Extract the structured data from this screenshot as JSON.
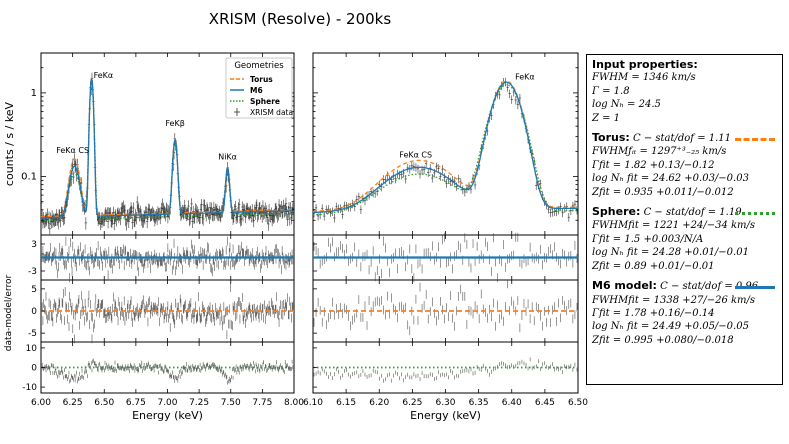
{
  "title": "XRISM (Resolve) - 200ks",
  "colors": {
    "torus": "#ff7f0e",
    "m6": "#1f77b4",
    "sphere": "#2ca02c",
    "data": "#333333"
  },
  "legend": {
    "title": "Geometries",
    "entries": [
      {
        "label": "Torus",
        "style": "dashed",
        "color": "#ff7f0e"
      },
      {
        "label": "M6",
        "style": "solid",
        "color": "#1f77b4"
      },
      {
        "label": "Sphere",
        "style": "dotted",
        "color": "#2ca02c"
      },
      {
        "label": "XRISM data",
        "style": "errorbar",
        "color": "#333333"
      }
    ]
  },
  "chart_data": [
    {
      "type": "line",
      "panel": "left-spectrum",
      "xlim": [
        6.0,
        8.0
      ],
      "ylim": [
        0.02,
        3.0
      ],
      "yscale": "log",
      "ylabel": "counts / s / keV",
      "yticks": [
        "0.1",
        "1"
      ],
      "annotations": [
        "FeKα CS",
        "FeKα",
        "FeKβ",
        "NiKα"
      ],
      "continuum": 0.032,
      "slope": 0.0035,
      "lines": [
        {
          "name": "FeKα",
          "center": 6.4,
          "sigma": 0.012,
          "amp": 1.45
        },
        {
          "name": "FeKα CS",
          "center": 6.265,
          "sigma": 0.035,
          "amp": 0.1
        },
        {
          "name": "FeKβ",
          "center": 7.06,
          "sigma": 0.015,
          "amp": 0.24
        },
        {
          "name": "NiKα",
          "center": 7.475,
          "sigma": 0.013,
          "amp": 0.09
        }
      ]
    },
    {
      "type": "line",
      "panel": "right-spectrum",
      "xlim": [
        6.1,
        6.5
      ],
      "ylim": [
        0.02,
        3.0
      ],
      "yscale": "log",
      "annotations": [
        "FeKα CS",
        "FeKα"
      ],
      "continuum": 0.037,
      "slope": 0.012,
      "lines": [
        {
          "name": "FeKα",
          "center": 6.392,
          "sigma": 0.018,
          "amp": 1.3
        },
        {
          "name": "FeKα CS",
          "center": 6.26,
          "sigma": 0.045,
          "amp": 0.09
        }
      ]
    },
    {
      "type": "scatter",
      "panel": "residuals",
      "ylabel": "data-model/error",
      "rows": [
        {
          "model": "Torus-M6",
          "color": "#1f77b4",
          "style": "solid",
          "ylim": [
            -5,
            5
          ],
          "yticks": [
            "3",
            "-3"
          ],
          "zero": 0
        },
        {
          "model": "Torus",
          "color": "#ff7f0e",
          "style": "dashed",
          "ylim": [
            -7,
            7
          ],
          "yticks": [
            "5",
            "0",
            "-5"
          ],
          "zero": 0
        },
        {
          "model": "Sphere",
          "color": "#2ca02c",
          "style": "dotted",
          "ylim": [
            -13,
            13
          ],
          "yticks": [
            "10",
            "0",
            "-10"
          ],
          "zero": 0
        }
      ]
    },
    {
      "type": "axes",
      "left_xticks": [
        "6.00",
        "6.25",
        "6.50",
        "6.75",
        "7.00",
        "7.25",
        "7.50",
        "7.75",
        "8.00"
      ],
      "right_xticks": [
        "6.10",
        "6.15",
        "6.20",
        "6.25",
        "6.30",
        "6.35",
        "6.40",
        "6.45",
        "6.50"
      ],
      "xlabel": "Energy (keV)"
    }
  ],
  "info": {
    "input": {
      "header": "Input properties:",
      "lines": [
        "FWHM = 1346 km/s",
        "Γ = 1.8",
        "log Nₕ = 24.5",
        "Z = 1"
      ]
    },
    "torus": {
      "header": "Torus:",
      "stat": "C − stat/dof = 1.11",
      "lines": [
        "FWHMƒᵢₜ = 1297⁺³₋₂₅ km/s",
        "Γfit = 1.82 +0.13/−0.12",
        "log Nₕ fit = 24.62 +0.03/−0.03",
        "Zfit = 0.935 +0.011/−0.012"
      ]
    },
    "sphere": {
      "header": "Sphere:",
      "stat": "C − stat/dof = 1.19",
      "lines": [
        "FWHMfit = 1221 +24/−34 km/s",
        "Γfit = 1.5 +0.003/N/A",
        "log Nₕ fit = 24.28 +0.01/−0.01",
        "Zfit = 0.89 +0.01/−0.01"
      ]
    },
    "m6": {
      "header": "M6 model:",
      "stat": "C − stat/dof = 0.96",
      "lines": [
        "FWHMfit = 1338 +27/−26 km/s",
        "Γfit = 1.78 +0.16/−0.14",
        "log Nₕ fit = 24.49 +0.05/−0.05",
        "Zfit = 0.995 +0.080/−0.018"
      ]
    }
  }
}
